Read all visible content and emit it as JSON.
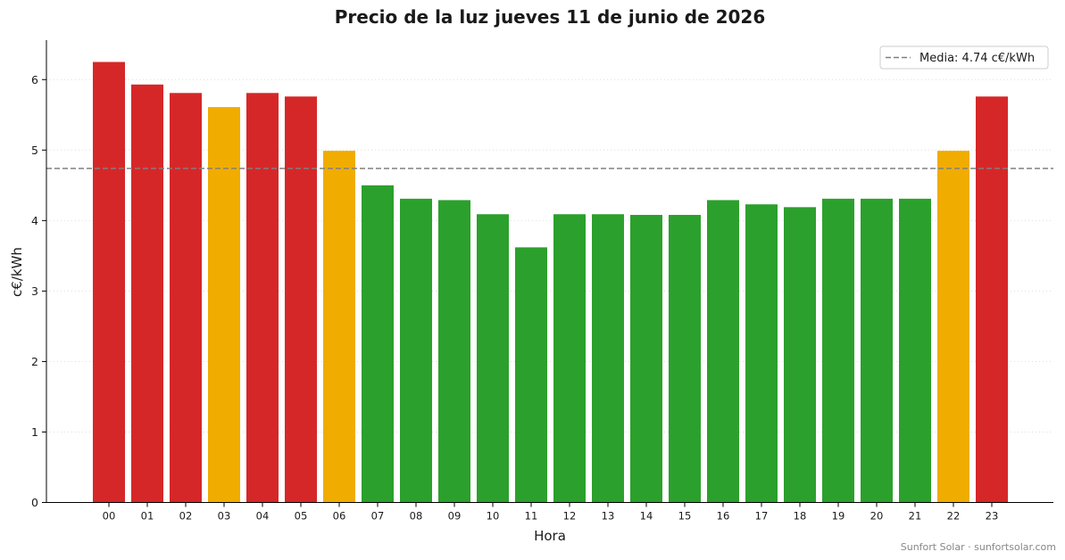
{
  "chart_data": {
    "type": "bar",
    "title": "Precio de la luz jueves 11 de junio de 2026",
    "xlabel": "Hora",
    "ylabel": "c€/kWh",
    "ylim": [
      0,
      6.56
    ],
    "yticks": [
      0,
      1,
      2,
      3,
      4,
      5,
      6
    ],
    "grid": "horizontal-dotted",
    "legend_placement": "top-right",
    "categories": [
      "00",
      "01",
      "02",
      "03",
      "04",
      "05",
      "06",
      "07",
      "08",
      "09",
      "10",
      "11",
      "12",
      "13",
      "14",
      "15",
      "16",
      "17",
      "18",
      "19",
      "20",
      "21",
      "22",
      "23"
    ],
    "values": [
      6.25,
      5.93,
      5.81,
      5.61,
      5.81,
      5.76,
      4.99,
      4.5,
      4.31,
      4.29,
      4.09,
      3.62,
      4.09,
      4.09,
      4.08,
      4.08,
      4.29,
      4.23,
      4.19,
      4.31,
      4.31,
      4.31,
      4.99,
      5.76
    ],
    "bar_levels": [
      "high",
      "high",
      "high",
      "mid",
      "high",
      "high",
      "mid",
      "low",
      "low",
      "low",
      "low",
      "low",
      "low",
      "low",
      "low",
      "low",
      "low",
      "low",
      "low",
      "low",
      "low",
      "low",
      "mid",
      "high"
    ],
    "level_colors": {
      "high": "#d62728",
      "mid": "#f0ad00",
      "low": "#2ca02c"
    },
    "mean": {
      "value": 4.74,
      "label": "Media: 4.74 c€/kWh",
      "color": "#808080",
      "style": "dashed"
    },
    "credit": "Sunfort Solar · sunfortsolar.com"
  }
}
